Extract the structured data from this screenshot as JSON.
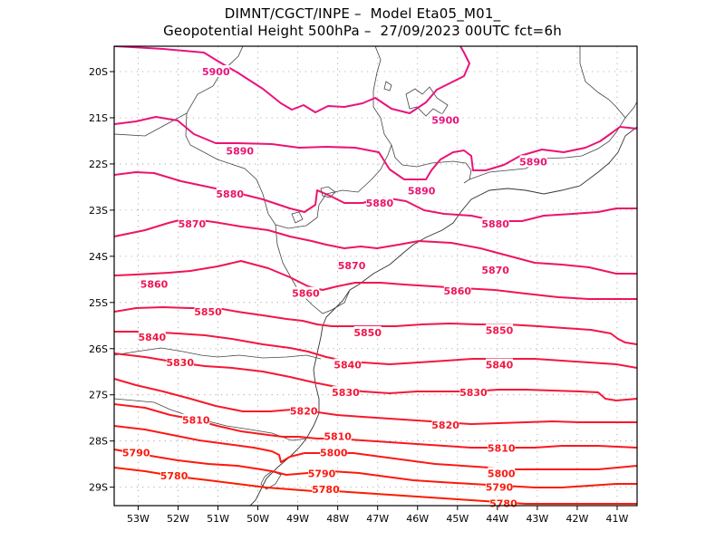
{
  "header": {
    "line1": "DIMNT/CGCT/INPE –  Model Eta05_M01_",
    "line2": "Geopotential Height 500hPa –  27/09/2023 00UTC fct=6h"
  },
  "axes": {
    "lat_ticks": [
      "20S",
      "21S",
      "22S",
      "23S",
      "24S",
      "25S",
      "26S",
      "27S",
      "28S",
      "29S"
    ],
    "lon_ticks": [
      "53W",
      "52W",
      "51W",
      "50W",
      "49W",
      "48W",
      "47W",
      "46W",
      "45W",
      "44W",
      "43W",
      "42W",
      "41W"
    ]
  },
  "colors": {
    "high": "#e8137e",
    "low": "#ff1a00",
    "coast": "#333333",
    "grid": "#9a9a9a"
  },
  "contours": [
    {
      "value": 5900,
      "text": "5900",
      "labels": [
        [
          -51.05,
          -20.0
        ],
        [
          -45.3,
          -21.05
        ]
      ]
    },
    {
      "value": 5890,
      "text": "5890",
      "labels": [
        [
          -50.45,
          -21.72
        ],
        [
          -45.9,
          -22.58
        ],
        [
          -43.1,
          -21.95
        ]
      ]
    },
    {
      "value": 5880,
      "text": "5880",
      "labels": [
        [
          -50.7,
          -22.65
        ],
        [
          -46.95,
          -22.85
        ],
        [
          -44.05,
          -23.3
        ]
      ]
    },
    {
      "value": 5870,
      "text": "5870",
      "labels": [
        [
          -51.65,
          -23.3
        ],
        [
          -47.65,
          -24.2
        ],
        [
          -44.05,
          -24.3
        ]
      ]
    },
    {
      "value": 5860,
      "text": "5860",
      "labels": [
        [
          -52.6,
          -24.6
        ],
        [
          -48.8,
          -24.8
        ],
        [
          -45.0,
          -24.75
        ]
      ]
    },
    {
      "value": 5850,
      "text": "5850",
      "labels": [
        [
          -51.25,
          -25.2
        ],
        [
          -47.25,
          -25.65
        ],
        [
          -43.95,
          -25.6
        ]
      ]
    },
    {
      "value": 5840,
      "text": "5840",
      "labels": [
        [
          -52.65,
          -25.75
        ],
        [
          -47.75,
          -26.35
        ],
        [
          -43.95,
          -26.35
        ]
      ]
    },
    {
      "value": 5830,
      "text": "5830",
      "labels": [
        [
          -51.95,
          -26.3
        ],
        [
          -47.8,
          -26.95
        ],
        [
          -44.6,
          -26.95
        ]
      ]
    },
    {
      "value": 5820,
      "text": "5820",
      "labels": [
        [
          -48.85,
          -27.35
        ],
        [
          -45.3,
          -27.65
        ]
      ]
    },
    {
      "value": 5810,
      "text": "5810",
      "labels": [
        [
          -51.55,
          -27.55
        ],
        [
          -48.0,
          -27.9
        ],
        [
          -43.9,
          -28.15
        ]
      ]
    },
    {
      "value": 5800,
      "text": "5800",
      "labels": [
        [
          -48.1,
          -28.25
        ],
        [
          -43.9,
          -28.7
        ]
      ]
    },
    {
      "value": 5790,
      "text": "5790",
      "labels": [
        [
          -53.05,
          -28.25
        ],
        [
          -48.4,
          -28.7
        ],
        [
          -43.95,
          -29.0
        ]
      ]
    },
    {
      "value": 5780,
      "text": "5780",
      "labels": [
        [
          -52.1,
          -28.75
        ],
        [
          -48.3,
          -29.05
        ],
        [
          -43.85,
          -29.35
        ]
      ]
    }
  ]
}
